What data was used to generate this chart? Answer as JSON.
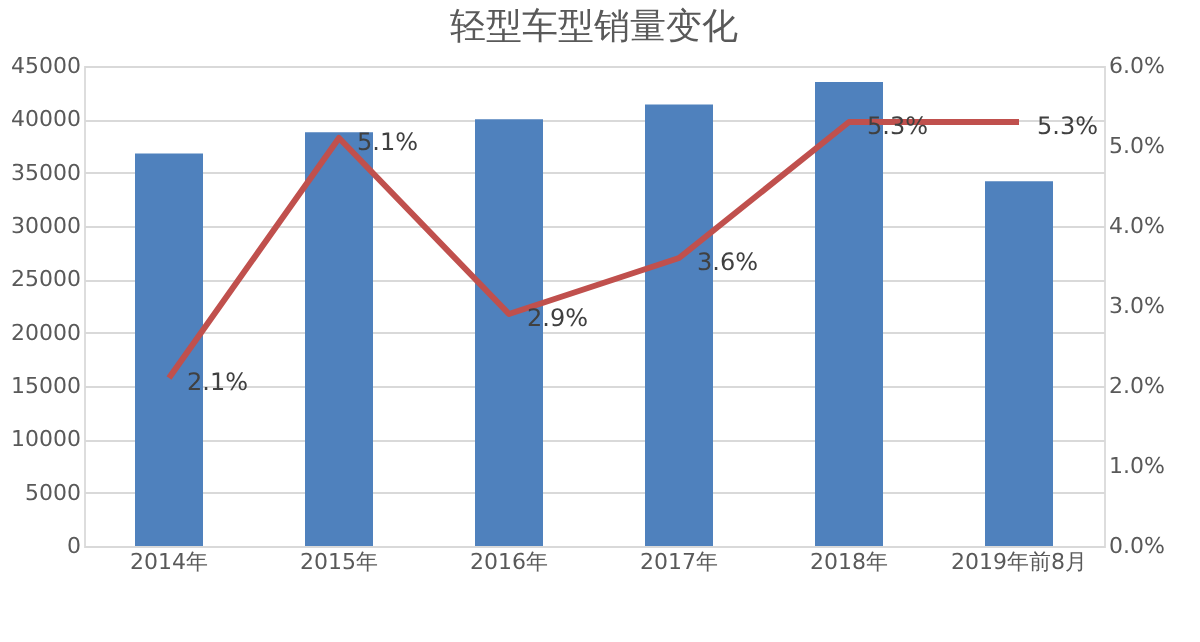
{
  "chart_data": {
    "type": "bar",
    "title": "轻型车型销量变化",
    "categories": [
      "2014年",
      "2015年",
      "2016年",
      "2017年",
      "2018年",
      "2019年前8月"
    ],
    "series": [
      {
        "color": "#4f81bd",
        "values": [
          36800,
          38800,
          40000,
          41400,
          43500,
          34200
        ]
      },
      {
        "type": "line",
        "axis": "y2",
        "color": "#c0504d",
        "values": [
          2.1,
          5.1,
          2.9,
          3.6,
          5.3,
          5.3
        ],
        "value_labels": [
          "2.1%",
          "5.1%",
          "2.9%",
          "3.6%",
          "5.3%",
          "5.3%"
        ]
      }
    ],
    "ylim": [
      0,
      45000
    ],
    "yticks": [
      0,
      5000,
      10000,
      15000,
      20000,
      25000,
      30000,
      35000,
      40000,
      45000
    ],
    "y2lim": [
      0,
      6
    ],
    "y2ticks": [
      {
        "value": 0,
        "label": "0.0%"
      },
      {
        "value": 1,
        "label": "1.0%"
      },
      {
        "value": 2,
        "label": "2.0%"
      },
      {
        "value": 3,
        "label": "3.0%"
      },
      {
        "value": 4,
        "label": "4.0%"
      },
      {
        "value": 5,
        "label": "5.0%"
      },
      {
        "value": 6,
        "label": "6.0%"
      }
    ],
    "grid": "y",
    "marker": "none",
    "line_style": "solid"
  }
}
